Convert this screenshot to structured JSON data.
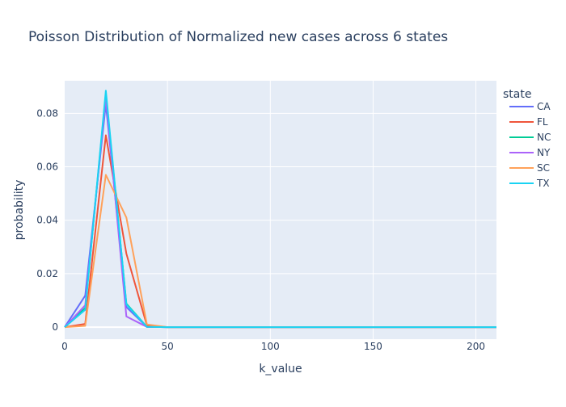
{
  "chart_data": {
    "type": "line",
    "title": "Poisson Distribution of Normalized new cases across 6 states",
    "xlabel": "k_value",
    "ylabel": "probability",
    "xlim": [
      0,
      210
    ],
    "ylim": [
      -0.0045,
      0.0922
    ],
    "x_ticks": [
      0,
      50,
      100,
      150,
      200
    ],
    "x_tick_labels": [
      "0",
      "50",
      "100",
      "150",
      "200"
    ],
    "y_ticks": [
      0,
      0.02,
      0.04,
      0.06,
      0.08
    ],
    "y_tick_labels": [
      "0",
      "0.02",
      "0.04",
      "0.06",
      "0.08"
    ],
    "grid": true,
    "legend_title": "state",
    "legend_position": "right",
    "x": [
      0,
      10,
      20,
      30,
      40,
      50,
      60,
      70,
      80,
      90,
      100,
      110,
      120,
      130,
      140,
      150,
      160,
      170,
      180,
      190,
      200,
      210
    ],
    "series": [
      {
        "name": "CA",
        "color": "#636efa",
        "values": [
          0,
          0.0118,
          0.0835,
          0.0075,
          0.0001,
          0,
          0,
          0,
          0,
          0,
          0,
          0,
          0,
          0,
          0,
          0,
          0,
          0,
          0,
          0,
          0,
          0
        ]
      },
      {
        "name": "FL",
        "color": "#ef553b",
        "values": [
          0,
          0.0012,
          0.0718,
          0.0275,
          0.0006,
          0,
          0,
          0,
          0,
          0,
          0,
          0,
          0,
          0,
          0,
          0,
          0,
          0,
          0,
          0,
          0,
          0
        ]
      },
      {
        "name": "NC",
        "color": "#00cc96",
        "values": [
          0,
          0.0072,
          0.0872,
          0.0088,
          0.0001,
          0,
          0,
          0,
          0,
          0,
          0,
          0,
          0,
          0,
          0,
          0,
          0,
          0,
          0,
          0,
          0,
          0
        ]
      },
      {
        "name": "NY",
        "color": "#ab63fa",
        "values": [
          0,
          0.0082,
          0.086,
          0.004,
          0.0001,
          0,
          0,
          0,
          0,
          0,
          0,
          0,
          0,
          0,
          0,
          0,
          0,
          0,
          0,
          0,
          0,
          0
        ]
      },
      {
        "name": "SC",
        "color": "#ffa15a",
        "values": [
          0,
          0.0005,
          0.057,
          0.041,
          0.001,
          0,
          0,
          0,
          0,
          0,
          0,
          0,
          0,
          0,
          0,
          0,
          0,
          0,
          0,
          0,
          0,
          0
        ]
      },
      {
        "name": "TX",
        "color": "#19d3f3",
        "values": [
          0,
          0.0065,
          0.0885,
          0.0085,
          0.0001,
          0,
          0,
          0,
          0,
          0,
          0,
          0,
          0,
          0,
          0,
          0,
          0,
          0,
          0,
          0,
          0,
          0
        ]
      }
    ]
  }
}
